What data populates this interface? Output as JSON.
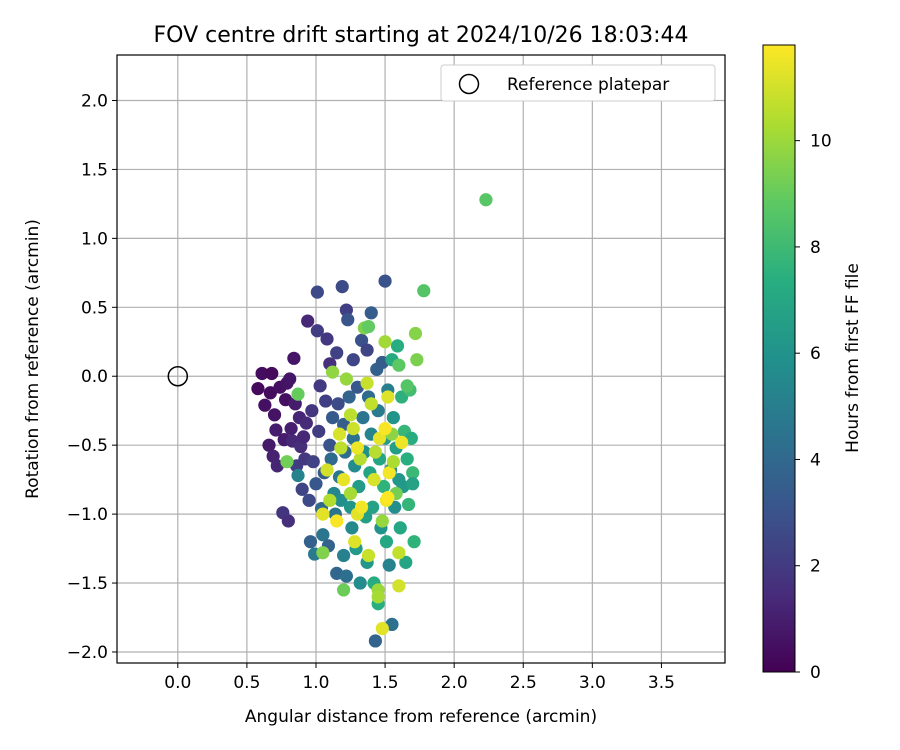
{
  "chart_data": {
    "type": "scatter",
    "title": "FOV centre drift starting at 2024/10/26 18:03:44",
    "xlabel": "Angular distance from reference (arcmin)",
    "ylabel": "Rotation from reference (arcmin)",
    "xlim": [
      -0.44,
      3.96
    ],
    "ylim": [
      -2.08,
      2.33
    ],
    "xticks": [
      "0.0",
      "0.5",
      "1.0",
      "1.5",
      "2.0",
      "2.5",
      "3.0",
      "3.5"
    ],
    "yticks": [
      "−2.0",
      "−1.5",
      "−1.0",
      "−0.5",
      "0.0",
      "0.5",
      "1.0",
      "1.5",
      "2.0"
    ],
    "grid": true,
    "legend": {
      "position": "top-right",
      "entries": [
        "Reference platepar"
      ]
    },
    "reference": {
      "x": 0.0,
      "y": 0.0
    },
    "colorbar": {
      "label": "Hours from first FF file",
      "colormap": "viridis",
      "range": [
        0,
        11.8
      ],
      "ticks": [
        "0",
        "2",
        "4",
        "6",
        "8",
        "10"
      ]
    },
    "points": [
      [
        0.58,
        -0.09,
        0.3
      ],
      [
        0.61,
        0.02,
        0.4
      ],
      [
        0.63,
        -0.21,
        0.5
      ],
      [
        0.67,
        -0.12,
        0.4
      ],
      [
        0.68,
        0.02,
        0.3
      ],
      [
        0.66,
        -0.5,
        0.8
      ],
      [
        0.69,
        -0.58,
        1.1
      ],
      [
        0.7,
        -0.28,
        0.6
      ],
      [
        0.71,
        -0.39,
        0.9
      ],
      [
        0.72,
        -0.65,
        1.2
      ],
      [
        0.74,
        -0.08,
        0.5
      ],
      [
        0.77,
        -0.46,
        0.9
      ],
      [
        0.76,
        -0.99,
        1.8
      ],
      [
        0.78,
        -0.17,
        0.5
      ],
      [
        0.79,
        -0.05,
        0.6
      ],
      [
        0.8,
        -1.05,
        1.6
      ],
      [
        0.81,
        -0.02,
        0.7
      ],
      [
        0.82,
        -0.38,
        1.0
      ],
      [
        0.83,
        -0.47,
        1.3
      ],
      [
        0.84,
        0.13,
        0.7
      ],
      [
        0.85,
        -0.2,
        0.9
      ],
      [
        0.86,
        -0.65,
        2.1
      ],
      [
        0.87,
        -0.72,
        5.2
      ],
      [
        0.88,
        -0.3,
        1.2
      ],
      [
        0.89,
        -0.51,
        1.5
      ],
      [
        0.9,
        -0.82,
        2.4
      ],
      [
        0.91,
        -0.44,
        1.3
      ],
      [
        0.92,
        -0.6,
        1.9
      ],
      [
        0.93,
        -0.34,
        1.4
      ],
      [
        0.94,
        0.4,
        1.3
      ],
      [
        0.95,
        -0.9,
        2.6
      ],
      [
        0.96,
        -1.2,
        3.6
      ],
      [
        0.97,
        -0.25,
        1.8
      ],
      [
        0.98,
        -0.62,
        2.3
      ],
      [
        0.99,
        -1.29,
        4.8
      ],
      [
        1.0,
        -0.78,
        3.2
      ],
      [
        1.01,
        0.33,
        2.1
      ],
      [
        1.01,
        0.61,
        2.6
      ],
      [
        1.02,
        -0.4,
        2.1
      ],
      [
        1.03,
        -0.07,
        2.0
      ],
      [
        1.04,
        -0.96,
        4.0
      ],
      [
        1.05,
        -1.15,
        4.6
      ],
      [
        1.06,
        -0.7,
        3.4
      ],
      [
        1.07,
        -0.18,
        2.2
      ],
      [
        1.08,
        0.27,
        1.9
      ],
      [
        1.09,
        -1.23,
        3.7
      ],
      [
        1.1,
        0.09,
        1.6
      ],
      [
        1.1,
        -0.5,
        3.0
      ],
      [
        1.11,
        -0.6,
        4.1
      ],
      [
        1.12,
        -0.3,
        3.3
      ],
      [
        1.13,
        -0.85,
        5.4
      ],
      [
        1.14,
        -1.0,
        4.5
      ],
      [
        1.15,
        0.17,
        2.3
      ],
      [
        1.15,
        -1.43,
        3.9
      ],
      [
        1.16,
        -0.2,
        2.7
      ],
      [
        1.17,
        -0.73,
        4.7
      ],
      [
        1.18,
        -0.9,
        5.8
      ],
      [
        1.19,
        0.65,
        2.7
      ],
      [
        1.2,
        -0.35,
        3.5
      ],
      [
        1.2,
        -1.3,
        5.1
      ],
      [
        1.21,
        -0.55,
        4.2
      ],
      [
        1.22,
        0.48,
        2.2
      ],
      [
        1.22,
        -1.45,
        4.3
      ],
      [
        1.23,
        0.41,
        3.1
      ],
      [
        1.24,
        -0.15,
        3.8
      ],
      [
        1.25,
        -0.95,
        6.1
      ],
      [
        1.26,
        -1.1,
        5.5
      ],
      [
        1.27,
        0.12,
        2.5
      ],
      [
        1.27,
        -0.45,
        4.4
      ],
      [
        1.28,
        -0.65,
        5.6
      ],
      [
        1.29,
        -1.25,
        6.3
      ],
      [
        1.3,
        -0.08,
        3.2
      ],
      [
        1.31,
        -0.8,
        6.4
      ],
      [
        1.32,
        -1.5,
        5.7
      ],
      [
        1.33,
        0.26,
        2.9
      ],
      [
        1.34,
        -0.3,
        4.6
      ],
      [
        1.35,
        -0.55,
        5.9
      ],
      [
        1.36,
        -1.02,
        6.6
      ],
      [
        1.37,
        0.19,
        2.4
      ],
      [
        1.37,
        -1.35,
        6.2
      ],
      [
        1.38,
        -0.15,
        4.1
      ],
      [
        1.39,
        -0.7,
        6.8
      ],
      [
        1.4,
        -0.42,
        5.3
      ],
      [
        1.4,
        0.46,
        3.5
      ],
      [
        1.41,
        -0.95,
        6.7
      ],
      [
        1.42,
        -1.5,
        7.2
      ],
      [
        1.43,
        -1.92,
        3.8
      ],
      [
        1.44,
        0.05,
        3.6
      ],
      [
        1.45,
        -0.25,
        4.9
      ],
      [
        1.45,
        -1.65,
        7.4
      ],
      [
        1.46,
        -0.6,
        6.9
      ],
      [
        1.47,
        -1.1,
        6.0
      ],
      [
        1.48,
        0.1,
        3.4
      ],
      [
        1.49,
        -0.8,
        7.6
      ],
      [
        1.5,
        0.69,
        3.0
      ],
      [
        1.5,
        -0.45,
        6.5
      ],
      [
        1.51,
        -1.2,
        7.0
      ],
      [
        1.52,
        -0.1,
        5.0
      ],
      [
        1.53,
        -1.37,
        5.2
      ],
      [
        1.54,
        -0.68,
        5.7
      ],
      [
        1.55,
        0.12,
        7.1
      ],
      [
        1.55,
        -1.8,
        4.4
      ],
      [
        1.56,
        -0.3,
        6.1
      ],
      [
        1.57,
        -0.95,
        5.8
      ],
      [
        1.58,
        -0.52,
        6.6
      ],
      [
        1.59,
        0.22,
        7.3
      ],
      [
        1.6,
        -0.75,
        6.2
      ],
      [
        1.61,
        -1.1,
        7.0
      ],
      [
        1.62,
        -0.15,
        7.5
      ],
      [
        1.63,
        -0.8,
        6.3
      ],
      [
        1.64,
        -0.4,
        7.8
      ],
      [
        1.65,
        -1.35,
        6.9
      ],
      [
        1.66,
        -0.6,
        7.4
      ],
      [
        1.67,
        -0.93,
        7.7
      ],
      [
        1.68,
        -0.1,
        8.1
      ],
      [
        1.69,
        -0.45,
        7.2
      ],
      [
        1.7,
        -0.7,
        7.9
      ],
      [
        1.71,
        -1.2,
        7.6
      ],
      [
        1.72,
        0.31,
        9.6
      ],
      [
        1.73,
        0.12,
        9.4
      ],
      [
        1.7,
        -0.78,
        6.7
      ],
      [
        1.78,
        0.62,
        8.6
      ],
      [
        2.23,
        1.28,
        8.7
      ],
      [
        0.87,
        -0.13,
        9.0
      ],
      [
        0.79,
        -0.62,
        9.2
      ],
      [
        1.05,
        -1.28,
        9.5
      ],
      [
        1.12,
        0.03,
        9.8
      ],
      [
        1.18,
        -0.52,
        10.6
      ],
      [
        1.22,
        -0.02,
        9.9
      ],
      [
        1.25,
        -0.85,
        10.2
      ],
      [
        1.27,
        -0.38,
        10.9
      ],
      [
        1.3,
        -1.0,
        11.3
      ],
      [
        1.32,
        -0.6,
        10.5
      ],
      [
        1.35,
        0.35,
        9.5
      ],
      [
        1.38,
        -1.3,
        10.8
      ],
      [
        1.4,
        -0.2,
        10.7
      ],
      [
        1.42,
        -0.75,
        11.1
      ],
      [
        1.45,
        -1.55,
        10.0
      ],
      [
        1.46,
        -0.45,
        11.4
      ],
      [
        1.48,
        -1.05,
        9.9
      ],
      [
        1.5,
        0.25,
        10.1
      ],
      [
        1.51,
        -0.9,
        11.5
      ],
      [
        1.52,
        -0.15,
        11.2
      ],
      [
        1.53,
        -0.7,
        11.6
      ],
      [
        1.55,
        -0.42,
        9.7
      ],
      [
        1.56,
        -0.62,
        10.3
      ],
      [
        1.58,
        -0.85,
        9.3
      ],
      [
        1.6,
        -1.28,
        10.7
      ],
      [
        1.6,
        -1.52,
        11.0
      ],
      [
        1.62,
        -0.48,
        11.5
      ],
      [
        1.05,
        -1.0,
        11.3
      ],
      [
        1.08,
        -0.68,
        11.0
      ],
      [
        1.1,
        -0.9,
        10.4
      ],
      [
        1.15,
        -1.05,
        11.7
      ],
      [
        1.2,
        -0.75,
        11.4
      ],
      [
        1.25,
        -0.28,
        10.6
      ],
      [
        1.28,
        -1.2,
        11.2
      ],
      [
        1.33,
        -0.95,
        11.6
      ],
      [
        1.37,
        -0.05,
        10.8
      ],
      [
        1.43,
        -0.55,
        10.5
      ],
      [
        1.48,
        -1.83,
        11.3
      ],
      [
        1.5,
        -0.38,
        11.7
      ],
      [
        1.52,
        -0.88,
        11.8
      ],
      [
        1.45,
        -1.6,
        10.2
      ],
      [
        1.17,
        -0.42,
        11.1
      ],
      [
        1.3,
        -0.52,
        11.5
      ],
      [
        1.2,
        -1.55,
        9.1
      ],
      [
        1.38,
        0.36,
        8.9
      ],
      [
        1.66,
        -0.07,
        8.6
      ],
      [
        1.6,
        0.08,
        8.8
      ]
    ]
  }
}
